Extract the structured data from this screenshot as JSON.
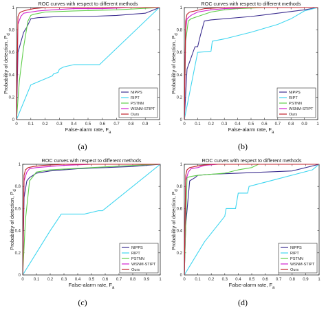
{
  "captions": [
    "(a)",
    "(b)",
    "(c)",
    "(d)"
  ],
  "chart_data": [
    {
      "type": "line",
      "title": "ROC curves with respect to different methods",
      "xlabel": "False-alarm  rate, F_a",
      "ylabel": "Probability of detection, P_d",
      "xlim": [
        0,
        1
      ],
      "ylim": [
        0,
        1
      ],
      "x_ticks": [
        "0",
        "0.1",
        "0.2",
        "0.3",
        "0.4",
        "0.5",
        "0.6",
        "0.7",
        "0.8",
        "0.9",
        "1"
      ],
      "y_ticks": [
        "0",
        "0.2",
        "0.4",
        "0.6",
        "0.8",
        "1"
      ],
      "legend_position": "bottom-right",
      "grid": false,
      "series": [
        {
          "name": "NIPPS",
          "color": "#3b2d8f",
          "x": [
            0,
            0.01,
            0.05,
            0.07,
            0.1,
            0.15,
            0.3,
            0.5,
            0.7,
            0.9,
            1
          ],
          "y": [
            0,
            0.6,
            0.78,
            0.82,
            0.9,
            0.91,
            0.92,
            0.92,
            0.93,
            0.95,
            1
          ]
        },
        {
          "name": "RIPT",
          "color": "#3fd6f0",
          "x": [
            0,
            0.1,
            0.25,
            0.26,
            0.29,
            0.3,
            0.33,
            0.4,
            0.58,
            0.99,
            1
          ],
          "y": [
            0,
            0.31,
            0.39,
            0.41,
            0.42,
            0.45,
            0.47,
            0.49,
            0.49,
            0.99,
            1
          ]
        },
        {
          "name": "PSTNN",
          "color": "#5fce4a",
          "x": [
            0,
            0.02,
            0.05,
            0.08,
            0.1,
            0.12,
            0.2,
            0.4,
            0.7,
            1
          ],
          "y": [
            0,
            0.35,
            0.65,
            0.88,
            0.93,
            0.94,
            0.96,
            0.97,
            0.98,
            1
          ]
        },
        {
          "name": "WSNM-STIPT",
          "color": "#d020d0",
          "x": [
            0,
            0.01,
            0.03,
            0.05,
            0.1,
            0.15,
            0.25,
            0.4,
            0.6,
            0.8,
            1
          ],
          "y": [
            0,
            0.85,
            0.92,
            0.95,
            0.96,
            0.97,
            0.98,
            0.99,
            0.99,
            1,
            1
          ]
        },
        {
          "name": "Ours",
          "color": "#c0202a",
          "x": [
            0,
            0.01,
            0.02,
            0.03,
            0.05,
            0.08,
            0.12,
            0.2,
            0.4,
            0.7,
            1
          ],
          "y": [
            0,
            0.92,
            0.95,
            0.96,
            0.97,
            0.98,
            0.99,
            1,
            1,
            1,
            1
          ]
        }
      ]
    },
    {
      "type": "line",
      "title": "ROC curves with respect to different methods",
      "xlabel": "False-alarm  rate, F_a",
      "ylabel": "Probability of detection, P_d",
      "xlim": [
        0,
        1
      ],
      "ylim": [
        0,
        1
      ],
      "x_ticks": [
        "0",
        "0.1",
        "0.2",
        "0.3",
        "0.4",
        "0.5",
        "0.6",
        "0.7",
        "0.8",
        "0.9",
        "1"
      ],
      "y_ticks": [
        "0",
        "0.2",
        "0.4",
        "0.6",
        "0.8",
        "1"
      ],
      "legend_position": "bottom-right",
      "grid": false,
      "series": [
        {
          "name": "NIPPS",
          "color": "#3b2d8f",
          "x": [
            0,
            0.02,
            0.05,
            0.08,
            0.1,
            0.12,
            0.15,
            0.2,
            0.5,
            0.7,
            0.9,
            1
          ],
          "y": [
            0,
            0.45,
            0.55,
            0.65,
            0.65,
            0.75,
            0.88,
            0.89,
            0.92,
            0.95,
            0.98,
            1
          ]
        },
        {
          "name": "RIPT",
          "color": "#3fd6f0",
          "x": [
            0,
            0.1,
            0.2,
            0.21,
            0.3,
            0.5,
            0.7,
            0.8,
            0.9,
            1
          ],
          "y": [
            0,
            0.6,
            0.61,
            0.7,
            0.72,
            0.78,
            0.85,
            0.9,
            0.97,
            1
          ]
        },
        {
          "name": "PSTNN",
          "color": "#5fce4a",
          "x": [
            0,
            0.01,
            0.03,
            0.05,
            0.1,
            0.2,
            0.3,
            0.4,
            0.6,
            1
          ],
          "y": [
            0,
            0.7,
            0.88,
            0.9,
            0.92,
            0.96,
            0.98,
            0.99,
            1,
            1
          ]
        },
        {
          "name": "WSNM-STIPT",
          "color": "#d020d0",
          "x": [
            0,
            0.01,
            0.02,
            0.05,
            0.1,
            0.2,
            0.3,
            0.5,
            1
          ],
          "y": [
            0,
            0.8,
            0.9,
            0.93,
            0.96,
            0.98,
            0.99,
            1,
            1
          ]
        },
        {
          "name": "Ours",
          "color": "#c0202a",
          "x": [
            0,
            0.01,
            0.02,
            0.04,
            0.08,
            0.15,
            0.3,
            0.6,
            1
          ],
          "y": [
            0,
            0.88,
            0.94,
            0.96,
            0.97,
            0.99,
            1,
            1,
            1
          ]
        }
      ]
    },
    {
      "type": "line",
      "title": "ROC curves with respect to different methods",
      "xlabel": "False-alarm  rate, F_a",
      "ylabel": "Probability of detection, P_d",
      "xlim": [
        0,
        1
      ],
      "ylim": [
        0,
        1
      ],
      "x_ticks": [
        "0",
        "0.1",
        "0.2",
        "0.3",
        "0.4",
        "0.5",
        "0.6",
        "0.7",
        "0.8",
        "0.9",
        "1"
      ],
      "y_ticks": [
        "0",
        "0.2",
        "0.4",
        "0.6",
        "0.8",
        "1"
      ],
      "legend_position": "bottom-right",
      "grid": false,
      "series": [
        {
          "name": "NIPPS",
          "color": "#3b2d8f",
          "x": [
            0,
            0.01,
            0.03,
            0.05,
            0.1,
            0.2,
            0.4,
            0.6,
            0.8,
            1
          ],
          "y": [
            0,
            0.7,
            0.85,
            0.88,
            0.92,
            0.94,
            0.96,
            0.97,
            0.98,
            1
          ]
        },
        {
          "name": "RIPT",
          "color": "#3fd6f0",
          "x": [
            0,
            0.1,
            0.2,
            0.27,
            0.28,
            0.3,
            0.45,
            0.55,
            0.58,
            0.99,
            1
          ],
          "y": [
            0,
            0.2,
            0.4,
            0.53,
            0.55,
            0.55,
            0.55,
            0.58,
            0.58,
            0.99,
            1
          ]
        },
        {
          "name": "PSTNN",
          "color": "#5fce4a",
          "x": [
            0,
            0.02,
            0.05,
            0.1,
            0.2,
            0.35,
            0.5,
            0.8,
            1
          ],
          "y": [
            0,
            0.5,
            0.85,
            0.93,
            0.95,
            0.96,
            0.97,
            0.99,
            1
          ]
        },
        {
          "name": "WSNM-STIPT",
          "color": "#d020d0",
          "x": [
            0,
            0.01,
            0.03,
            0.05,
            0.1,
            0.2,
            0.3,
            0.5,
            1
          ],
          "y": [
            0,
            0.85,
            0.93,
            0.96,
            0.97,
            0.98,
            0.99,
            1,
            1
          ]
        },
        {
          "name": "Ours",
          "color": "#c0202a",
          "x": [
            0,
            0.01,
            0.02,
            0.04,
            0.08,
            0.15,
            0.3,
            0.6,
            1
          ],
          "y": [
            0,
            0.9,
            0.95,
            0.97,
            0.98,
            0.99,
            1,
            1,
            1
          ]
        }
      ]
    },
    {
      "type": "line",
      "title": "ROC curves with respect to different methods",
      "xlabel": "False-alarm  rate, F_a",
      "ylabel": "Probability of detection, P_d",
      "xlim": [
        0,
        1
      ],
      "ylim": [
        0,
        1
      ],
      "x_ticks": [
        "0",
        "0.1",
        "0.2",
        "0.3",
        "0.4",
        "0.5",
        "0.6",
        "0.7",
        "0.8",
        "0.9",
        "1"
      ],
      "y_ticks": [
        "0",
        "0.2",
        "0.4",
        "0.6",
        "0.8",
        "1"
      ],
      "legend_position": "bottom-right",
      "grid": false,
      "series": [
        {
          "name": "NIPPS",
          "color": "#3b2d8f",
          "x": [
            0,
            0.01,
            0.04,
            0.08,
            0.1,
            0.2,
            0.4,
            0.6,
            0.8,
            1
          ],
          "y": [
            0,
            0.45,
            0.85,
            0.88,
            0.9,
            0.91,
            0.92,
            0.93,
            0.94,
            1
          ]
        },
        {
          "name": "RIPT",
          "color": "#3fd6f0",
          "x": [
            0,
            0.15,
            0.3,
            0.31,
            0.38,
            0.4,
            0.47,
            0.48,
            0.95,
            1
          ],
          "y": [
            0,
            0.3,
            0.53,
            0.6,
            0.6,
            0.74,
            0.74,
            0.8,
            0.95,
            1
          ]
        },
        {
          "name": "PSTNN",
          "color": "#5fce4a",
          "x": [
            0,
            0.02,
            0.05,
            0.1,
            0.3,
            0.4,
            0.5,
            0.55,
            0.7,
            1
          ],
          "y": [
            0,
            0.88,
            0.89,
            0.9,
            0.92,
            0.95,
            0.97,
            1,
            1,
            1
          ]
        },
        {
          "name": "WSNM-STIPT",
          "color": "#d020d0",
          "x": [
            0,
            0.01,
            0.03,
            0.05,
            0.1,
            0.15,
            0.25,
            0.4,
            1
          ],
          "y": [
            0,
            0.85,
            0.93,
            0.96,
            0.97,
            0.99,
            1,
            1,
            1
          ]
        },
        {
          "name": "Ours",
          "color": "#c0202a",
          "x": [
            0,
            0.01,
            0.02,
            0.04,
            0.08,
            0.12,
            0.2,
            0.5,
            1
          ],
          "y": [
            0,
            0.9,
            0.95,
            0.97,
            0.98,
            0.99,
            1,
            1,
            1
          ]
        }
      ]
    }
  ]
}
